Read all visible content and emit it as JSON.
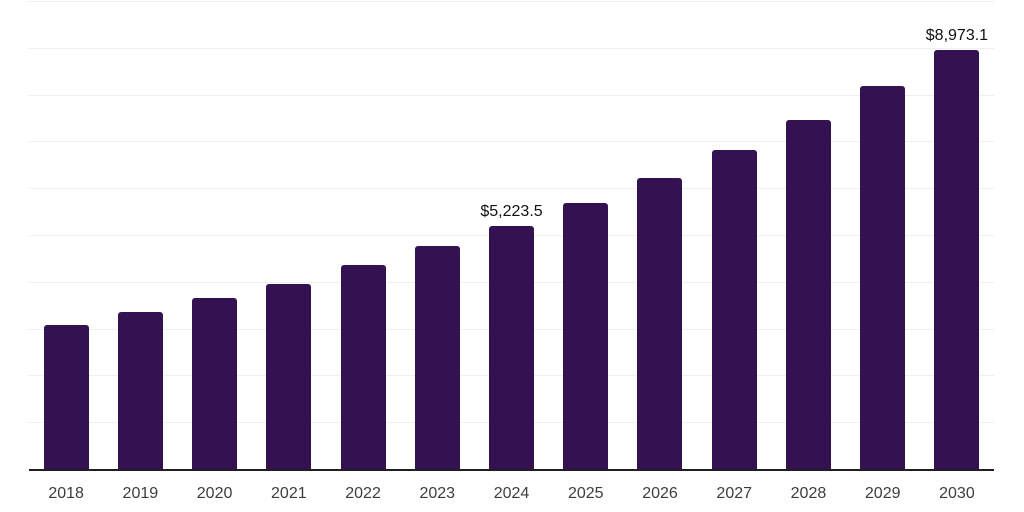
{
  "chart_data": {
    "type": "bar",
    "title": "",
    "xlabel": "",
    "ylabel": "",
    "categories": [
      "2018",
      "2019",
      "2020",
      "2021",
      "2022",
      "2023",
      "2024",
      "2025",
      "2026",
      "2027",
      "2028",
      "2029",
      "2030"
    ],
    "values": [
      3091,
      3368,
      3665,
      3985,
      4391,
      4796,
      5223.5,
      5712,
      6245,
      6841,
      7481,
      8206,
      8973.1
    ],
    "data_labels": {
      "2024": "$5,223.5",
      "2030": "$8,973.1"
    },
    "ylim": [
      0,
      10000
    ],
    "gridline_step": 1000,
    "grid": true,
    "legend": false
  },
  "colors": {
    "bar": "#341150",
    "gridline": "#efefef",
    "axis_line": "#1f1f1f",
    "tick_label": "#3d3d3d",
    "value_label": "#111111",
    "background": "#ffffff"
  }
}
